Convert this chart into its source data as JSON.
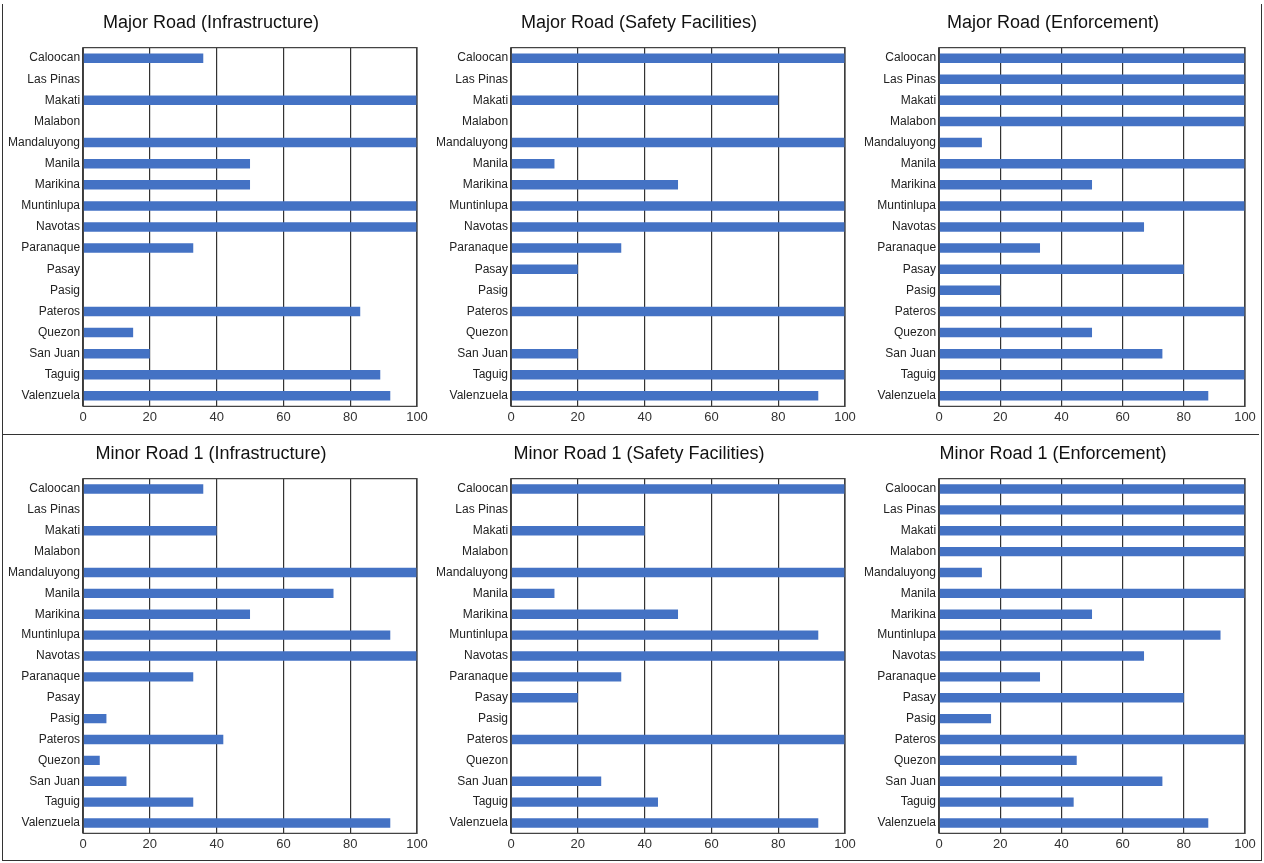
{
  "chart_data": [
    {
      "type": "bar",
      "orientation": "horizontal",
      "title": "Major Road (Infrastructure)",
      "categories": [
        "Caloocan",
        "Las Pinas",
        "Makati",
        "Malabon",
        "Mandaluyong",
        "Manila",
        "Marikina",
        "Muntinlupa",
        "Navotas",
        "Paranaque",
        "Pasay",
        "Pasig",
        "Pateros",
        "Quezon",
        "San Juan",
        "Taguig",
        "Valenzuela"
      ],
      "values": [
        36,
        0,
        100,
        0,
        100,
        50,
        50,
        100,
        100,
        33,
        0,
        0,
        83,
        15,
        20,
        89,
        92
      ],
      "color": "#4472c4",
      "xlim": [
        0,
        100
      ],
      "xticks": [
        0,
        20,
        40,
        60,
        80,
        100
      ],
      "grid": "x"
    },
    {
      "type": "bar",
      "orientation": "horizontal",
      "title": "Major Road (Safety Facilities)",
      "categories": [
        "Caloocan",
        "Las Pinas",
        "Makati",
        "Malabon",
        "Mandaluyong",
        "Manila",
        "Marikina",
        "Muntinlupa",
        "Navotas",
        "Paranaque",
        "Pasay",
        "Pasig",
        "Pateros",
        "Quezon",
        "San Juan",
        "Taguig",
        "Valenzuela"
      ],
      "values": [
        100,
        0,
        80,
        0,
        100,
        13,
        50,
        100,
        100,
        33,
        20,
        0,
        100,
        0,
        20,
        100,
        92
      ],
      "color": "#4472c4",
      "xlim": [
        0,
        100
      ],
      "xticks": [
        0,
        20,
        40,
        60,
        80,
        100
      ],
      "grid": "x"
    },
    {
      "type": "bar",
      "orientation": "horizontal",
      "title": "Major Road (Enforcement)",
      "categories": [
        "Caloocan",
        "Las Pinas",
        "Makati",
        "Malabon",
        "Mandaluyong",
        "Manila",
        "Marikina",
        "Muntinlupa",
        "Navotas",
        "Paranaque",
        "Pasay",
        "Pasig",
        "Pateros",
        "Quezon",
        "San Juan",
        "Taguig",
        "Valenzuela"
      ],
      "values": [
        100,
        100,
        100,
        100,
        14,
        100,
        50,
        100,
        67,
        33,
        80,
        20,
        100,
        50,
        73,
        100,
        88
      ],
      "color": "#4472c4",
      "xlim": [
        0,
        100
      ],
      "xticks": [
        0,
        20,
        40,
        60,
        80,
        100
      ],
      "grid": "x"
    },
    {
      "type": "bar",
      "orientation": "horizontal",
      "title": "Minor Road 1 (Infrastructure)",
      "categories": [
        "Caloocan",
        "Las Pinas",
        "Makati",
        "Malabon",
        "Mandaluyong",
        "Manila",
        "Marikina",
        "Muntinlupa",
        "Navotas",
        "Paranaque",
        "Pasay",
        "Pasig",
        "Pateros",
        "Quezon",
        "San Juan",
        "Taguig",
        "Valenzuela"
      ],
      "values": [
        36,
        0,
        40,
        0,
        100,
        75,
        50,
        92,
        100,
        33,
        0,
        7,
        42,
        5,
        13,
        33,
        92
      ],
      "color": "#4472c4",
      "xlim": [
        0,
        100
      ],
      "xticks": [
        0,
        20,
        40,
        60,
        80,
        100
      ],
      "grid": "x"
    },
    {
      "type": "bar",
      "orientation": "horizontal",
      "title": "Minor Road 1 (Safety Facilities)",
      "categories": [
        "Caloocan",
        "Las Pinas",
        "Makati",
        "Malabon",
        "Mandaluyong",
        "Manila",
        "Marikina",
        "Muntinlupa",
        "Navotas",
        "Paranaque",
        "Pasay",
        "Pasig",
        "Pateros",
        "Quezon",
        "San Juan",
        "Taguig",
        "Valenzuela"
      ],
      "values": [
        100,
        0,
        40,
        0,
        100,
        13,
        50,
        92,
        100,
        33,
        20,
        0,
        100,
        0,
        27,
        44,
        92
      ],
      "color": "#4472c4",
      "xlim": [
        0,
        100
      ],
      "xticks": [
        0,
        20,
        40,
        60,
        80,
        100
      ],
      "grid": "x"
    },
    {
      "type": "bar",
      "orientation": "horizontal",
      "title": "Minor Road 1 (Enforcement)",
      "categories": [
        "Caloocan",
        "Las Pinas",
        "Makati",
        "Malabon",
        "Mandaluyong",
        "Manila",
        "Marikina",
        "Muntinlupa",
        "Navotas",
        "Paranaque",
        "Pasay",
        "Pasig",
        "Pateros",
        "Quezon",
        "San Juan",
        "Taguig",
        "Valenzuela"
      ],
      "values": [
        100,
        100,
        100,
        100,
        14,
        100,
        50,
        92,
        67,
        33,
        80,
        17,
        100,
        45,
        73,
        44,
        88
      ],
      "color": "#4472c4",
      "xlim": [
        0,
        100
      ],
      "xticks": [
        0,
        20,
        40,
        60,
        80,
        100
      ],
      "grid": "x"
    }
  ]
}
